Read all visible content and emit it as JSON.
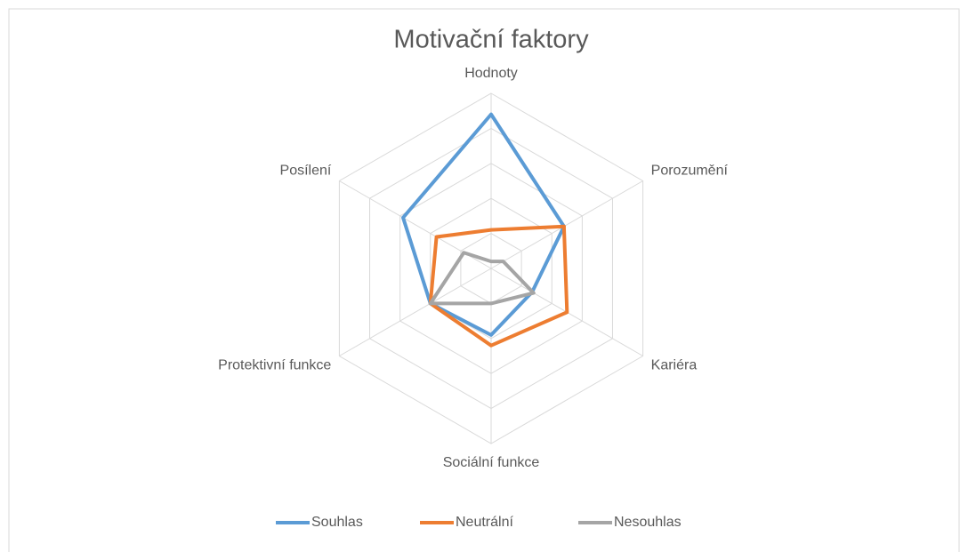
{
  "chart_data": {
    "type": "radar",
    "title": "Motivační faktory",
    "categories": [
      "Hodnoty",
      "Porozumění",
      "Kariéra",
      "Sociální funkce",
      "Protektivní funkce",
      "Posílení"
    ],
    "series": [
      {
        "name": "Souhlas",
        "color": "#5b9bd5",
        "values": [
          44,
          24,
          13.5,
          19,
          20,
          29
        ]
      },
      {
        "name": "Neutrální",
        "color": "#ed7d31",
        "values": [
          11,
          24,
          25,
          22,
          20,
          18
        ]
      },
      {
        "name": "Nesouhlas",
        "color": "#a5a5a5",
        "values": [
          2,
          4,
          14,
          10,
          20,
          9
        ]
      }
    ],
    "ylim": [
      0,
      50
    ],
    "yticks": [
      0,
      10,
      20,
      30,
      40,
      50
    ],
    "grid": true,
    "legend": "bottom"
  }
}
